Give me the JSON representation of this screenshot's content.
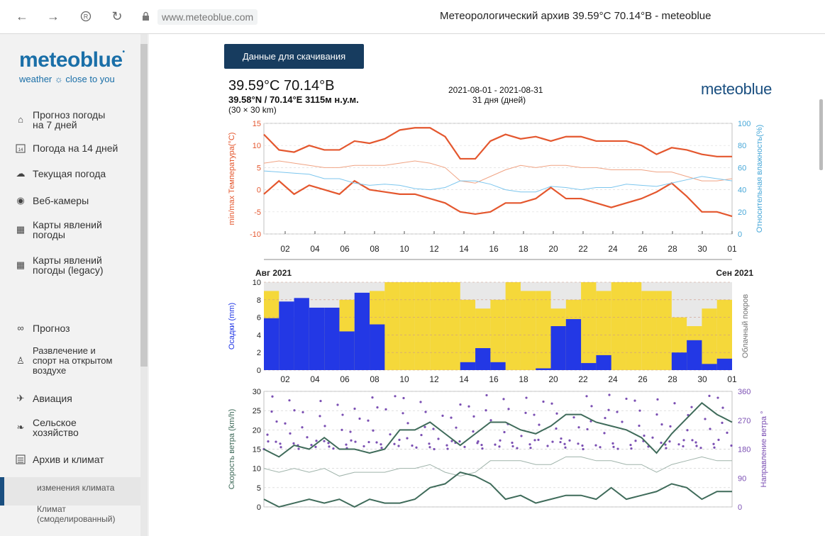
{
  "browser": {
    "url": "www.meteoblue.com",
    "title": "Метеорологический архив 39.59°C 70.14°B - meteoblue",
    "icons": [
      "back-icon",
      "forward-icon",
      "shield-icon",
      "reload-icon",
      "lock-icon"
    ]
  },
  "sidebar": {
    "logo": "meteoblue",
    "tagline": "weather ☼ close to you",
    "items": [
      {
        "label1": "Прогноз погоды",
        "label2": "на 7 дней",
        "icon": "home-icon"
      },
      {
        "label1": "Погода на 14 дней",
        "label2": "",
        "icon": "calendar-icon"
      },
      {
        "label1": "Текущая погода",
        "label2": "",
        "icon": "weather-icon"
      },
      {
        "label1": "Веб-камеры",
        "label2": "",
        "icon": "webcam-icon"
      },
      {
        "label1": "Карты явлений",
        "label2": "погоды",
        "icon": "map-icon"
      },
      {
        "label1": "Карты явлений",
        "label2": "погоды (legacy)",
        "icon": "map-icon"
      },
      {
        "label1": "Прогноз",
        "label2": "",
        "icon": "binoculars-icon"
      },
      {
        "label1": "Развлечение и",
        "label2": "спорт на открытом",
        "label3": "воздухе",
        "icon": "hiking-icon"
      },
      {
        "label1": "Авиация",
        "label2": "",
        "icon": "plane-icon"
      },
      {
        "label1": "Сельское",
        "label2": "хозяйство",
        "icon": "leaf-icon"
      },
      {
        "label1": "Архив и климат",
        "label2": "",
        "icon": "archive-icon"
      },
      {
        "label1": "изменения климата",
        "label2": ""
      },
      {
        "label1": "Климат",
        "label2": "(смоделированный)"
      }
    ]
  },
  "main": {
    "download_button": "Данные для скачивания",
    "coord_title": "39.59°C 70.14°B",
    "coord_sub": "39.58°N / 70.14°E  3115м н.у.м.",
    "grid_size": "(30 × 30 km)",
    "date_range": "2021-08-01 - 2021-08-31",
    "days": "31 дня (дней)",
    "brand": "meteoblue"
  },
  "chart_data": [
    {
      "type": "line",
      "ylabel": "min/max Температура(°C)",
      "y2label": "Относительная влажность(%)",
      "ylim": [
        -10,
        15
      ],
      "y2lim": [
        0,
        100
      ],
      "yticks": [
        15,
        10,
        5,
        0,
        -5,
        -10
      ],
      "y2ticks": [
        100,
        80,
        60,
        40,
        20,
        0
      ],
      "xticks": [
        "02",
        "04",
        "06",
        "08",
        "10",
        "12",
        "14",
        "16",
        "18",
        "20",
        "22",
        "24",
        "26",
        "28",
        "30",
        "01"
      ],
      "x": [
        1,
        2,
        3,
        4,
        5,
        6,
        7,
        8,
        9,
        10,
        11,
        12,
        13,
        14,
        15,
        16,
        17,
        18,
        19,
        20,
        21,
        22,
        23,
        24,
        25,
        26,
        27,
        28,
        29,
        30,
        31,
        32
      ],
      "series": [
        {
          "name": "max",
          "color": "#e4572e",
          "values": [
            12.5,
            9,
            8.5,
            10,
            9,
            9,
            11,
            10.5,
            11.5,
            13.5,
            14,
            14,
            12,
            7,
            7,
            11,
            12.5,
            11.5,
            12,
            11,
            12,
            12,
            11,
            11,
            11,
            10,
            8,
            9.5,
            9,
            8,
            7.5,
            7.5
          ]
        },
        {
          "name": "min",
          "color": "#e4572e",
          "values": [
            -1,
            2,
            -1,
            1,
            0,
            -1,
            2,
            0,
            -0.5,
            -1,
            -1,
            -2,
            -3,
            -5,
            -5.5,
            -5,
            -3,
            -3,
            -2,
            0.5,
            -2,
            -2,
            -3,
            -4,
            -3,
            -2,
            -0.5,
            1.5,
            -1.5,
            -5,
            -5,
            -6
          ]
        },
        {
          "name": "mean",
          "color": "#f0a383",
          "values": [
            6,
            6.5,
            6,
            5.5,
            5,
            5,
            5.5,
            5.5,
            5.5,
            6,
            6.5,
            6,
            5,
            2,
            1.5,
            3,
            4.5,
            5.5,
            5,
            5.5,
            5.5,
            5,
            5,
            4.5,
            4.5,
            4.5,
            4,
            4,
            3,
            2,
            2,
            2.5
          ]
        },
        {
          "name": "humidity",
          "color": "#7cc6ee",
          "axis": "y2",
          "values": [
            57,
            56,
            55,
            54,
            50,
            50,
            46,
            44,
            45,
            44,
            41,
            40,
            42,
            48,
            48,
            45,
            40,
            38,
            38,
            43,
            42,
            40,
            42,
            42,
            45,
            44,
            43,
            46,
            49,
            52,
            50,
            48
          ]
        }
      ]
    },
    {
      "type": "bar",
      "ylabel": "Осадки (mm)",
      "y2label": "Облачный покров",
      "month_left": "Авг 2021",
      "month_right": "Сен 2021",
      "ylim": [
        0,
        10
      ],
      "yticks": [
        10,
        8,
        6,
        4,
        2,
        0
      ],
      "xticks": [
        "02",
        "04",
        "06",
        "08",
        "10",
        "12",
        "14",
        "16",
        "18",
        "20",
        "22",
        "24",
        "26",
        "28",
        "30",
        "01"
      ],
      "x": [
        1,
        2,
        3,
        4,
        5,
        6,
        7,
        8,
        9,
        10,
        11,
        12,
        13,
        14,
        15,
        16,
        17,
        18,
        19,
        20,
        21,
        22,
        23,
        24,
        25,
        26,
        27,
        28,
        29,
        30,
        31
      ],
      "values": [
        5.9,
        7.8,
        8.2,
        7.1,
        7.1,
        4.4,
        8.8,
        5.2,
        0,
        0,
        0,
        0,
        0,
        0.9,
        2.5,
        0.9,
        0,
        0,
        0.2,
        5,
        5.8,
        0.8,
        1.7,
        0,
        0,
        0,
        0,
        2,
        3.4,
        0.7,
        1.3
      ],
      "cloud": [
        0.9,
        0.5,
        0.6,
        0.7,
        0.5,
        0.8,
        0.4,
        0.9,
        1,
        1,
        1,
        1,
        1,
        0.8,
        0.7,
        0.8,
        1,
        0.9,
        0.9,
        0.7,
        0.8,
        1,
        0.9,
        1,
        1,
        0.9,
        0.9,
        0.6,
        0.5,
        0.7,
        0.8
      ],
      "bar_color": "#2338e5",
      "cloud_color": "#f5d83a"
    },
    {
      "type": "line",
      "ylabel": "Скорость ветра (km/h)",
      "y2label": "Направление ветра °",
      "ylim": [
        0,
        30
      ],
      "y2lim": [
        0,
        360
      ],
      "yticks": [
        30,
        25,
        20,
        15,
        10,
        5,
        0
      ],
      "y2ticks": [
        360,
        270,
        180,
        90,
        0
      ],
      "xticks": [
        "02",
        "04",
        "06",
        "08",
        "10",
        "12",
        "14",
        "16",
        "18",
        "20",
        "22",
        "24",
        "26",
        "28",
        "30",
        "01"
      ],
      "x": [
        1,
        2,
        3,
        4,
        5,
        6,
        7,
        8,
        9,
        10,
        11,
        12,
        13,
        14,
        15,
        16,
        17,
        18,
        19,
        20,
        21,
        22,
        23,
        24,
        25,
        26,
        27,
        28,
        29,
        30,
        31,
        32
      ],
      "series": [
        {
          "name": "max",
          "color": "#3f6b5a",
          "values": [
            15,
            13,
            16,
            15,
            18,
            15,
            15,
            14,
            15,
            20,
            20,
            22,
            19,
            16,
            19,
            22,
            22,
            20,
            19,
            21,
            24,
            24,
            22,
            21,
            20,
            18,
            14,
            19,
            23,
            27,
            24,
            22
          ]
        },
        {
          "name": "mean",
          "color": "#9fb3aa",
          "values": [
            10,
            9,
            10,
            9,
            10,
            8,
            9,
            9,
            9,
            10,
            10,
            11,
            9,
            8,
            9,
            12,
            12,
            12,
            11,
            11,
            13,
            13,
            12,
            12,
            11,
            11,
            9,
            11,
            12,
            13,
            12,
            12
          ]
        },
        {
          "name": "min",
          "color": "#3f6b5a",
          "values": [
            2,
            0,
            1,
            2,
            1,
            2,
            0,
            2,
            1,
            1,
            2,
            5,
            6,
            9,
            8,
            6,
            2,
            3,
            1,
            2,
            3,
            3,
            2,
            5,
            2,
            3,
            4,
            6,
            5,
            2,
            4,
            4
          ]
        }
      ],
      "direction_color": "#7b4fb3",
      "direction_arrows": [
        "↓",
        "→",
        "↑",
        "←",
        "↓"
      ]
    }
  ]
}
